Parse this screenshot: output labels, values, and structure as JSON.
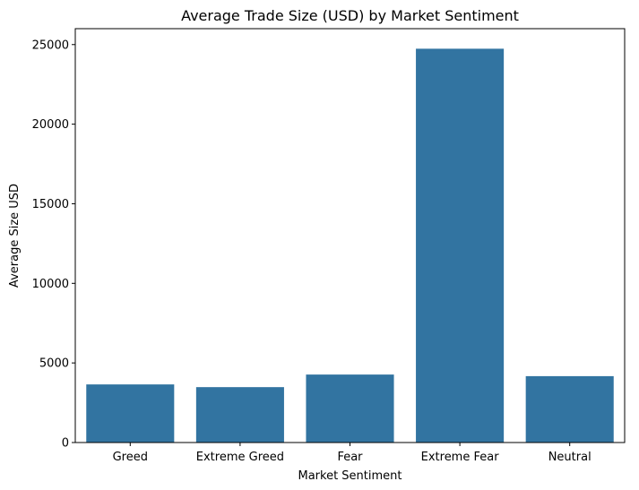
{
  "chart_data": {
    "type": "bar",
    "title": "Average Trade Size (USD) by Market Sentiment",
    "xlabel": "Market Sentiment",
    "ylabel": "Average Size USD",
    "categories": [
      "Greed",
      "Extreme Greed",
      "Fear",
      "Extreme Fear",
      "Neutral"
    ],
    "values": [
      3650,
      3480,
      4270,
      24740,
      4170
    ],
    "ylim": [
      0,
      26000
    ],
    "yticks": [
      0,
      5000,
      10000,
      15000,
      20000,
      25000
    ],
    "grid": false,
    "legend": "none",
    "bar_color": "#3274a1"
  }
}
